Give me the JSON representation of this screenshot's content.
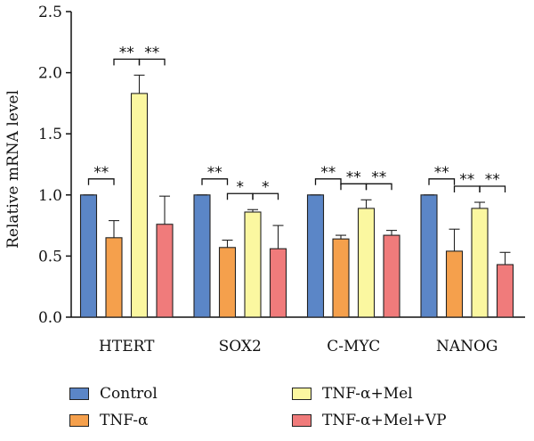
{
  "chart_data": {
    "type": "bar",
    "ylabel": "Relative mRNA level",
    "ylim": [
      0,
      2.5
    ],
    "yticks": [
      "0.0",
      "0.5",
      "1.0",
      "1.5",
      "2.0",
      "2.5"
    ],
    "categories": [
      "HTERT",
      "SOX2",
      "C-MYC",
      "NANOG"
    ],
    "series": [
      {
        "name": "Control",
        "color": "#5b86c7",
        "values": [
          1.0,
          1.0,
          1.0,
          1.0
        ],
        "errors": [
          0.0,
          0.0,
          0.0,
          0.0
        ]
      },
      {
        "name": "TNF-α",
        "color": "#f5a04c",
        "values": [
          0.65,
          0.57,
          0.64,
          0.54
        ],
        "errors": [
          0.14,
          0.06,
          0.03,
          0.18
        ]
      },
      {
        "name": "TNF-α+Mel",
        "color": "#fbf7a0",
        "values": [
          1.83,
          0.86,
          0.89,
          0.89
        ],
        "errors": [
          0.15,
          0.02,
          0.07,
          0.05
        ]
      },
      {
        "name": "TNF-α+Mel+VP",
        "color": "#f07b7b",
        "values": [
          0.76,
          0.56,
          0.67,
          0.43
        ],
        "errors": [
          0.23,
          0.19,
          0.04,
          0.1
        ]
      }
    ],
    "significance": [
      {
        "category": 0,
        "from": 0,
        "to": 1,
        "label": "**"
      },
      {
        "category": 0,
        "from": 1,
        "to": 2,
        "label": "**"
      },
      {
        "category": 0,
        "from": 2,
        "to": 3,
        "label": "**"
      },
      {
        "category": 1,
        "from": 0,
        "to": 1,
        "label": "**"
      },
      {
        "category": 1,
        "from": 1,
        "to": 2,
        "label": "*"
      },
      {
        "category": 1,
        "from": 2,
        "to": 3,
        "label": "*"
      },
      {
        "category": 2,
        "from": 0,
        "to": 1,
        "label": "**"
      },
      {
        "category": 2,
        "from": 1,
        "to": 2,
        "label": "**"
      },
      {
        "category": 2,
        "from": 2,
        "to": 3,
        "label": "**"
      },
      {
        "category": 3,
        "from": 0,
        "to": 1,
        "label": "**"
      },
      {
        "category": 3,
        "from": 1,
        "to": 2,
        "label": "**"
      },
      {
        "category": 3,
        "from": 2,
        "to": 3,
        "label": "**"
      }
    ],
    "legend_position": "bottom",
    "grid": false
  }
}
